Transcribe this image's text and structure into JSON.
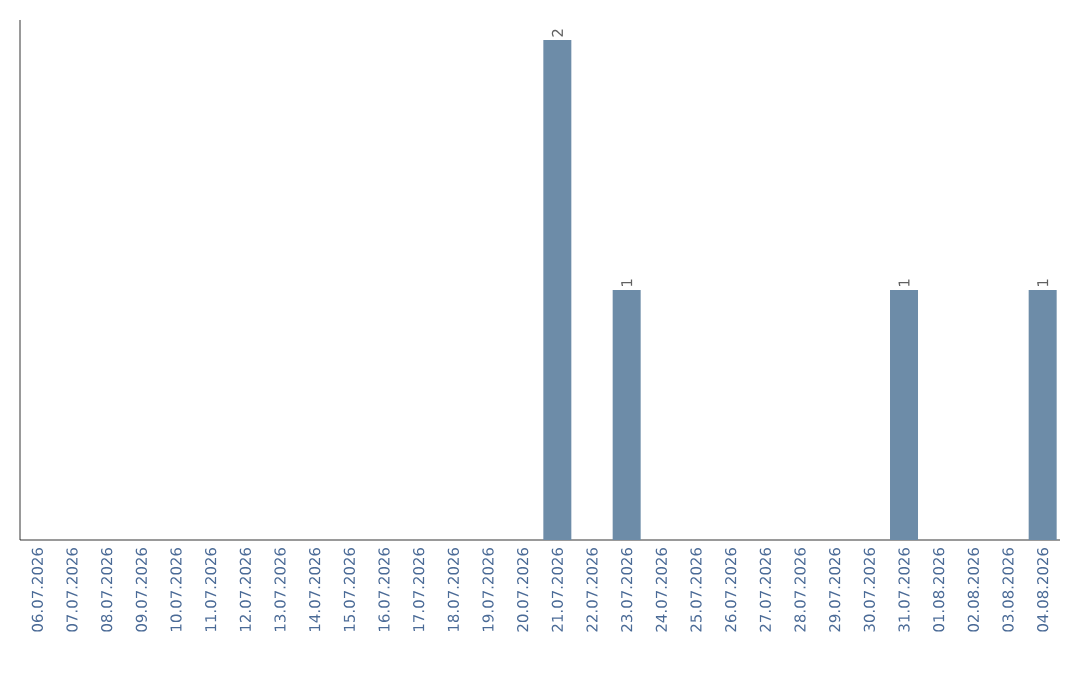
{
  "chart_data": {
    "type": "bar",
    "categories": [
      "06.07.2026",
      "07.07.2026",
      "08.07.2026",
      "09.07.2026",
      "10.07.2026",
      "11.07.2026",
      "12.07.2026",
      "13.07.2026",
      "14.07.2026",
      "15.07.2026",
      "16.07.2026",
      "17.07.2026",
      "18.07.2026",
      "19.07.2026",
      "20.07.2026",
      "21.07.2026",
      "22.07.2026",
      "23.07.2026",
      "24.07.2026",
      "25.07.2026",
      "26.07.2026",
      "27.07.2026",
      "28.07.2026",
      "29.07.2026",
      "30.07.2026",
      "31.07.2026",
      "01.08.2026",
      "02.08.2026",
      "03.08.2026",
      "04.08.2026"
    ],
    "values": [
      null,
      null,
      null,
      null,
      null,
      null,
      null,
      null,
      null,
      null,
      null,
      null,
      null,
      null,
      null,
      2,
      null,
      1,
      null,
      null,
      null,
      null,
      null,
      null,
      null,
      1,
      null,
      null,
      null,
      1
    ],
    "data_labels": true,
    "color": "#6d8ca8",
    "tick_labels": "x"
  }
}
